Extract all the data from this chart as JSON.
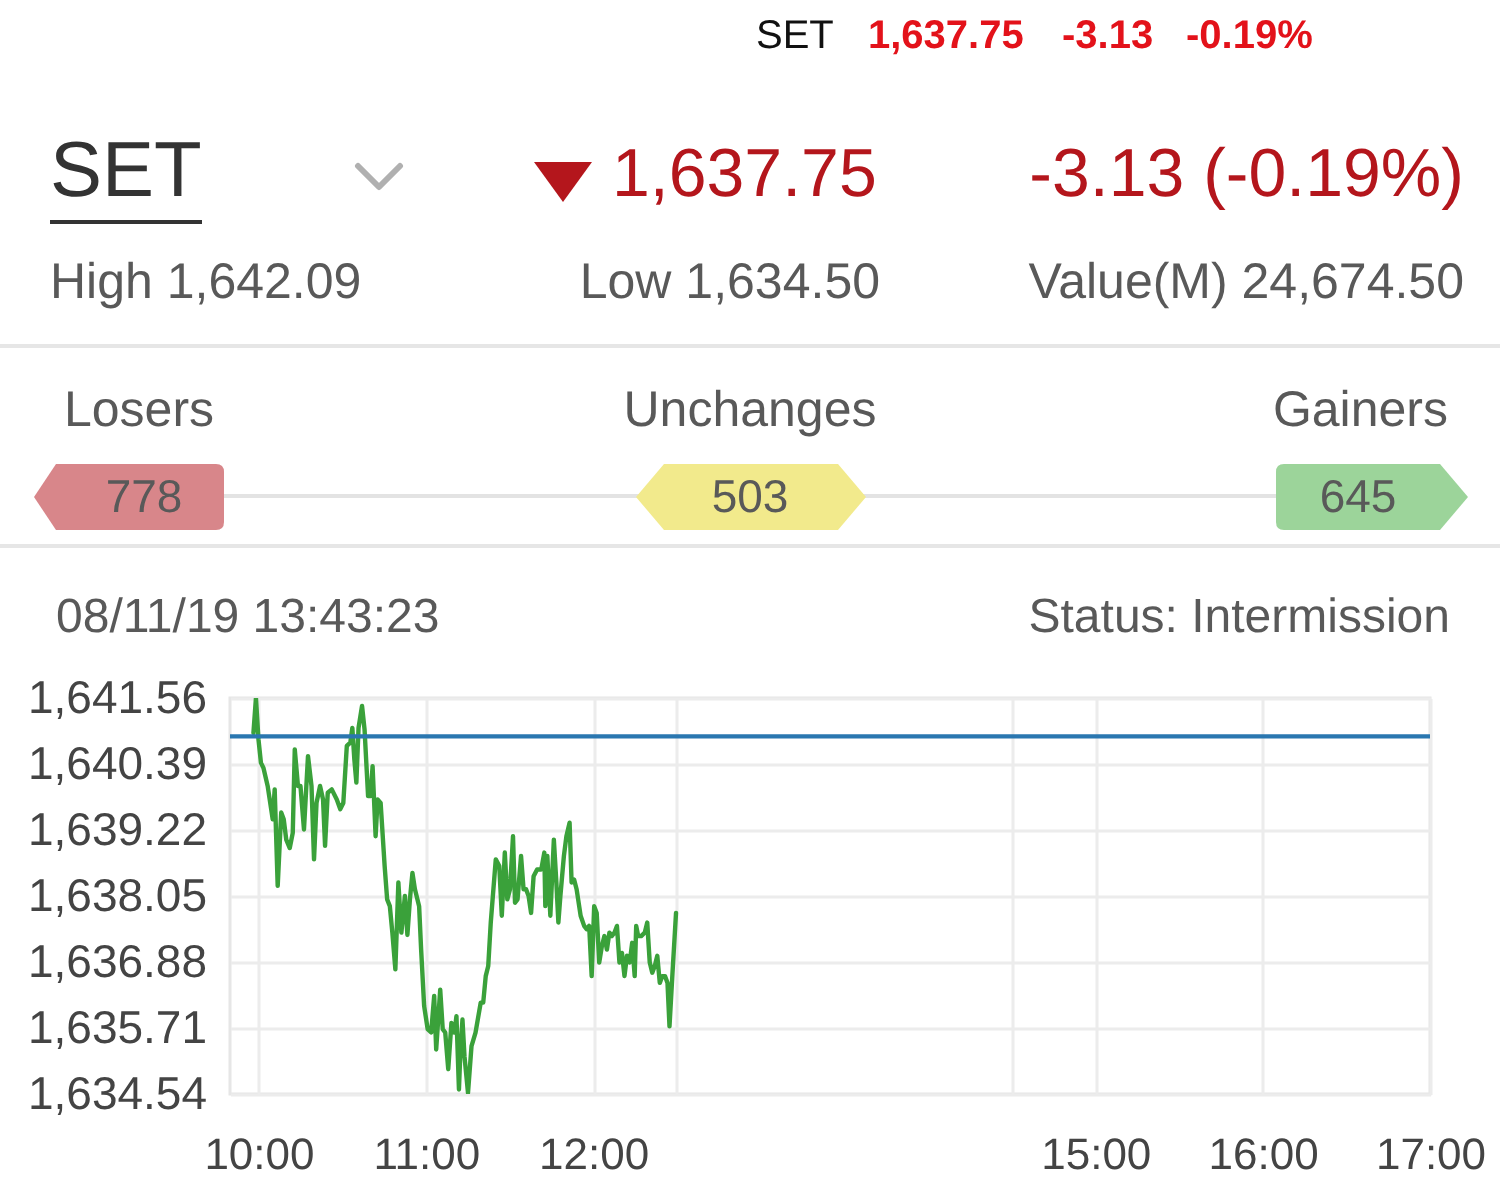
{
  "chart_data": {
    "type": "line",
    "title": "SET",
    "annotations": [
      "SET",
      "1,637.75",
      "-3.13",
      "-0.19%",
      "1,637.75",
      "-3.13 (-0.19%)",
      "High 1,642.09",
      "Low 1,634.50",
      "Value(M) 24,674.50",
      "Losers",
      "Unchanges",
      "Gainers",
      "778",
      "503",
      "645",
      "08/11/19 13:43:23",
      "Status: Intermission"
    ],
    "x": [
      9.97,
      9.985,
      10.0,
      10.015,
      10.03,
      10.055,
      10.076,
      10.085,
      10.097,
      10.115,
      10.136,
      10.151,
      10.166,
      10.187,
      10.205,
      10.217,
      10.236,
      10.251,
      10.272,
      10.296,
      10.317,
      10.332,
      10.347,
      10.368,
      10.386,
      10.398,
      10.414,
      10.438,
      10.468,
      10.489,
      10.507,
      10.528,
      10.549,
      10.561,
      10.573,
      10.585,
      10.598,
      10.619,
      10.634,
      10.655,
      10.67,
      10.682,
      10.7,
      10.712,
      10.73,
      10.754,
      10.769,
      10.785,
      10.8,
      10.818,
      10.836,
      10.854,
      10.875,
      10.89,
      10.905,
      10.92,
      10.935,
      10.96,
      10.972,
      10.99,
      11.011,
      11.032,
      11.05,
      11.062,
      11.086,
      11.101,
      11.116,
      11.134,
      11.153,
      11.171,
      11.183,
      11.198,
      11.207,
      11.219,
      11.231,
      11.252,
      11.273,
      11.297,
      11.328,
      11.343,
      11.358,
      11.373,
      11.388,
      11.418,
      11.439,
      11.454,
      11.472,
      11.487,
      11.503,
      11.521,
      11.533,
      11.548,
      11.569,
      11.584,
      11.599,
      11.614,
      11.629,
      11.644,
      11.665,
      11.69,
      11.708,
      11.714,
      11.726,
      11.744,
      11.765,
      11.78,
      11.792,
      11.804,
      11.825,
      11.84,
      11.859,
      11.871,
      11.886,
      11.901,
      11.925,
      11.946,
      11.961,
      11.976,
      11.991,
      12.006,
      12.021,
      12.036,
      12.052,
      12.067,
      12.082,
      12.097,
      12.112,
      12.127,
      12.142,
      12.157,
      12.172,
      12.187,
      12.202,
      12.218,
      12.233,
      12.248,
      12.257,
      12.269,
      12.287,
      12.308,
      12.323,
      12.338,
      12.353,
      12.368,
      12.383,
      12.398,
      12.413,
      12.429,
      12.444,
      12.456,
      12.474,
      12.495
    ],
    "series": [
      {
        "color": "#3aa13a",
        "values": [
          1640.94,
          1641.56,
          1640.83,
          1640.41,
          1640.32,
          1640.0,
          1639.59,
          1639.41,
          1639.94,
          1638.23,
          1639.53,
          1639.41,
          1639.05,
          1638.9,
          1639.17,
          1640.65,
          1640.0,
          1640.0,
          1639.23,
          1640.53,
          1640.0,
          1638.7,
          1639.7,
          1640.0,
          1639.76,
          1638.94,
          1639.88,
          1639.94,
          1639.76,
          1639.59,
          1639.7,
          1640.71,
          1640.77,
          1641.03,
          1640.47,
          1640.06,
          1641.03,
          1641.42,
          1641.0,
          1639.82,
          1639.82,
          1640.35,
          1639.11,
          1639.76,
          1639.7,
          1638.58,
          1637.99,
          1637.87,
          1637.4,
          1636.75,
          1638.29,
          1637.4,
          1638.05,
          1637.36,
          1637.99,
          1638.46,
          1638.17,
          1637.87,
          1637.1,
          1636.1,
          1635.69,
          1635.63,
          1636.28,
          1635.33,
          1636.39,
          1635.69,
          1635.63,
          1634.98,
          1635.8,
          1635.63,
          1635.92,
          1634.62,
          1635.33,
          1635.86,
          1635.21,
          1634.56,
          1635.39,
          1635.63,
          1636.16,
          1636.16,
          1636.63,
          1636.81,
          1637.58,
          1638.7,
          1638.58,
          1637.7,
          1638.82,
          1637.99,
          1638.17,
          1639.11,
          1637.93,
          1637.99,
          1638.76,
          1638.17,
          1638.17,
          1638.05,
          1637.75,
          1638.4,
          1638.52,
          1638.52,
          1638.82,
          1637.87,
          1638.76,
          1637.7,
          1639.05,
          1638.29,
          1637.58,
          1638.05,
          1638.76,
          1639.11,
          1639.35,
          1638.29,
          1638.34,
          1638.17,
          1637.7,
          1637.52,
          1637.46,
          1637.52,
          1636.63,
          1637.87,
          1637.75,
          1636.87,
          1637.16,
          1637.34,
          1637.1,
          1637.4,
          1637.34,
          1637.4,
          1637.52,
          1636.87,
          1637.04,
          1636.63,
          1636.99,
          1636.87,
          1637.22,
          1636.63,
          1637.52,
          1637.34,
          1637.34,
          1637.4,
          1637.58,
          1636.87,
          1636.69,
          1636.81,
          1636.99,
          1636.51,
          1636.63,
          1636.63,
          1636.51,
          1635.74,
          1636.69,
          1637.75
        ]
      }
    ],
    "xlim": [
      9.83,
      17
    ],
    "xticks": [
      {
        "value": 10,
        "label": "10:00"
      },
      {
        "value": 11,
        "label": "11:00"
      },
      {
        "value": 12,
        "label": "12:00"
      },
      {
        "value": 12.5,
        "label": null
      },
      {
        "value": 14.5,
        "label": null
      },
      {
        "value": 15,
        "label": "15:00"
      },
      {
        "value": 16,
        "label": "16:00"
      },
      {
        "value": 17,
        "label": "17:00"
      }
    ],
    "ylim": [
      1634.54,
      1641.56
    ],
    "yticks": [
      {
        "value": 1634.54,
        "label": "1,634.54"
      },
      {
        "value": 1635.71,
        "label": "1,635.71"
      },
      {
        "value": 1636.88,
        "label": "1,636.88"
      },
      {
        "value": 1638.05,
        "label": "1,638.05"
      },
      {
        "value": 1639.22,
        "label": "1,639.22"
      },
      {
        "value": 1640.39,
        "label": "1,640.39"
      },
      {
        "value": 1641.56,
        "label": "1,641.56"
      }
    ],
    "grid": true,
    "ref_lines": [
      {
        "axis": "y",
        "value": 1640.88,
        "color": "#2a77b0"
      }
    ]
  }
}
